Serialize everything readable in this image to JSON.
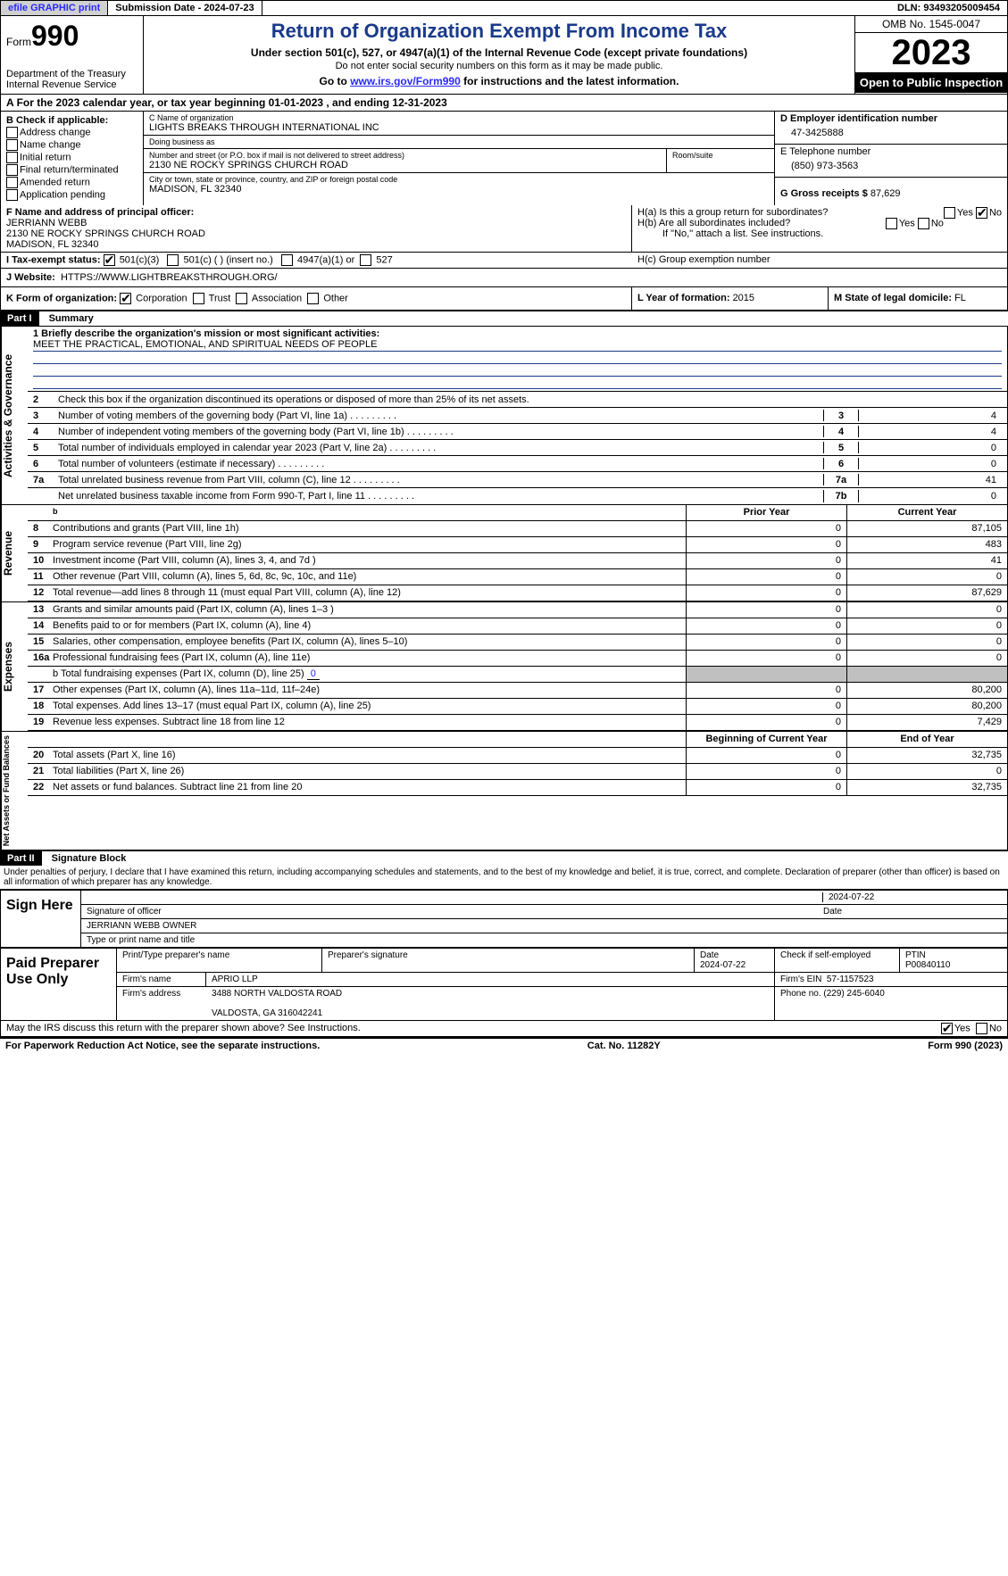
{
  "top": {
    "efile": "efile GRAPHIC print",
    "sub_date_label": "Submission Date - 2024-07-23",
    "dln": "DLN: 93493205009454"
  },
  "header": {
    "form_word": "Form",
    "form_no": "990",
    "dept": "Department of the Treasury Internal Revenue Service",
    "title": "Return of Organization Exempt From Income Tax",
    "sub1": "Under section 501(c), 527, or 4947(a)(1) of the Internal Revenue Code (except private foundations)",
    "sub2": "Do not enter social security numbers on this form as it may be made public.",
    "sub3_pre": "Go to ",
    "sub3_link": "www.irs.gov/Form990",
    "sub3_post": " for instructions and the latest information.",
    "omb": "OMB No. 1545-0047",
    "year": "2023",
    "open": "Open to Public Inspection"
  },
  "line_a": "For the 2023 calendar year, or tax year beginning 01-01-2023    , and ending 12-31-2023",
  "col_b": {
    "hdr": "B Check if applicable:",
    "opts": [
      "Address change",
      "Name change",
      "Initial return",
      "Final return/terminated",
      "Amended return",
      "Application pending"
    ]
  },
  "col_c": {
    "name_lbl": "C Name of organization",
    "name": "LIGHTS BREAKS THROUGH INTERNATIONAL INC",
    "dba_lbl": "Doing business as",
    "dba": "",
    "street_lbl": "Number and street (or P.O. box if mail is not delivered to street address)",
    "street": "2130 NE ROCKY SPRINGS CHURCH ROAD",
    "room_lbl": "Room/suite",
    "city_lbl": "City or town, state or province, country, and ZIP or foreign postal code",
    "city": "MADISON, FL   32340"
  },
  "col_d": {
    "ein_lbl": "D Employer identification number",
    "ein": "47-3425888",
    "tel_lbl": "E Telephone number",
    "tel": "(850) 973-3563",
    "gross_lbl": "G Gross receipts $ ",
    "gross": "87,629"
  },
  "row_f": {
    "lbl": "F  Name and address of principal officer:",
    "name": "JERRIANN WEBB",
    "street": "2130 NE ROCKY SPRINGS CHURCH ROAD",
    "city": "MADISON, FL   32340"
  },
  "row_h": {
    "ha_lbl": "H(a)  Is this a group return for subordinates?",
    "ha_yes": "Yes",
    "ha_no": "No",
    "hb_lbl": "H(b)  Are all subordinates included?",
    "hb_note": "If \"No,\" attach a list. See instructions.",
    "hc_lbl": "H(c)  Group exemption number"
  },
  "row_i": {
    "lbl": "I   Tax-exempt status:",
    "c3": "501(c)(3)",
    "c": "501(c) (  ) (insert no.)",
    "a1": "4947(a)(1) or",
    "527": "527"
  },
  "row_j": {
    "lbl": "J   Website:",
    "val": "HTTPS://WWW.LIGHTBREAKSTHROUGH.ORG/"
  },
  "row_k": {
    "lbl": "K Form of organization:",
    "corp": "Corporation",
    "trust": "Trust",
    "assoc": "Association",
    "other": "Other"
  },
  "row_l": {
    "lbl": "L Year of formation: ",
    "val": "2015"
  },
  "row_m": {
    "lbl": "M State of legal domicile: ",
    "val": "FL"
  },
  "part1": {
    "label": "Part I",
    "title": "Summary",
    "l1_lbl": "1  Briefly describe the organization's mission or most significant activities:",
    "l1_val": "MEET THE PRACTICAL, EMOTIONAL, AND SPIRITUAL NEEDS OF PEOPLE",
    "l2": "Check this box      if the organization discontinued its operations or disposed of more than 25% of its net assets.",
    "rows_gov": [
      {
        "n": "3",
        "t": "Number of voting members of the governing body (Part VI, line 1a)",
        "box": "3",
        "v": "4"
      },
      {
        "n": "4",
        "t": "Number of independent voting members of the governing body (Part VI, line 1b)",
        "box": "4",
        "v": "4"
      },
      {
        "n": "5",
        "t": "Total number of individuals employed in calendar year 2023 (Part V, line 2a)",
        "box": "5",
        "v": "0"
      },
      {
        "n": "6",
        "t": "Total number of volunteers (estimate if necessary)",
        "box": "6",
        "v": "0"
      },
      {
        "n": "7a",
        "t": "Total unrelated business revenue from Part VIII, column (C), line 12",
        "box": "7a",
        "v": "41"
      },
      {
        "n": "",
        "t": "Net unrelated business taxable income from Form 990-T, Part I, line 11",
        "box": "7b",
        "v": "0"
      }
    ],
    "prior_hdr": "Prior Year",
    "curr_hdr": "Current Year",
    "rows_rev": [
      {
        "n": "8",
        "t": "Contributions and grants (Part VIII, line 1h)",
        "p": "0",
        "c": "87,105"
      },
      {
        "n": "9",
        "t": "Program service revenue (Part VIII, line 2g)",
        "p": "0",
        "c": "483"
      },
      {
        "n": "10",
        "t": "Investment income (Part VIII, column (A), lines 3, 4, and 7d )",
        "p": "0",
        "c": "41"
      },
      {
        "n": "11",
        "t": "Other revenue (Part VIII, column (A), lines 5, 6d, 8c, 9c, 10c, and 11e)",
        "p": "0",
        "c": "0"
      },
      {
        "n": "12",
        "t": "Total revenue—add lines 8 through 11 (must equal Part VIII, column (A), line 12)",
        "p": "0",
        "c": "87,629"
      }
    ],
    "rows_exp": [
      {
        "n": "13",
        "t": "Grants and similar amounts paid (Part IX, column (A), lines 1–3 )",
        "p": "0",
        "c": "0"
      },
      {
        "n": "14",
        "t": "Benefits paid to or for members (Part IX, column (A), line 4)",
        "p": "0",
        "c": "0"
      },
      {
        "n": "15",
        "t": "Salaries, other compensation, employee benefits (Part IX, column (A), lines 5–10)",
        "p": "0",
        "c": "0"
      },
      {
        "n": "16a",
        "t": "Professional fundraising fees (Part IX, column (A), line 11e)",
        "p": "0",
        "c": "0"
      }
    ],
    "row_16b_lbl": "b   Total fundraising expenses (Part IX, column (D), line 25)",
    "row_16b_val": "0",
    "rows_exp2": [
      {
        "n": "17",
        "t": "Other expenses (Part IX, column (A), lines 11a–11d, 11f–24e)",
        "p": "0",
        "c": "80,200"
      },
      {
        "n": "18",
        "t": "Total expenses. Add lines 13–17 (must equal Part IX, column (A), line 25)",
        "p": "0",
        "c": "80,200"
      },
      {
        "n": "19",
        "t": "Revenue less expenses. Subtract line 18 from line 12",
        "p": "0",
        "c": "7,429"
      }
    ],
    "bcy_hdr": "Beginning of Current Year",
    "eoy_hdr": "End of Year",
    "rows_net": [
      {
        "n": "20",
        "t": "Total assets (Part X, line 16)",
        "p": "0",
        "c": "32,735"
      },
      {
        "n": "21",
        "t": "Total liabilities (Part X, line 26)",
        "p": "0",
        "c": "0"
      },
      {
        "n": "22",
        "t": "Net assets or fund balances. Subtract line 21 from line 20",
        "p": "0",
        "c": "32,735"
      }
    ],
    "side_gov": "Activities & Governance",
    "side_rev": "Revenue",
    "side_exp": "Expenses",
    "side_net": "Net Assets or Fund Balances"
  },
  "part2": {
    "label": "Part II",
    "title": "Signature Block",
    "penalties": "Under penalties of perjury, I declare that I have examined this return, including accompanying schedules and statements, and to the best of my knowledge and belief, it is true, correct, and complete. Declaration of preparer (other than officer) is based on all information of which preparer has any knowledge.",
    "sign_here": "Sign Here",
    "sig_date": "2024-07-22",
    "sig_lbl": "Signature of officer",
    "sig_date_lbl": "Date",
    "officer": "JERRIANN WEBB OWNER",
    "officer_lbl": "Type or print name and title",
    "paid": "Paid Preparer Use Only",
    "prep_name_lbl": "Print/Type preparer's name",
    "prep_sig_lbl": "Preparer's signature",
    "prep_date_lbl": "Date",
    "prep_date": "2024-07-22",
    "prep_check": "Check       if self-employed",
    "ptin_lbl": "PTIN",
    "ptin": "P00840110",
    "firm_name_lbl": "Firm's name",
    "firm_name": "APRIO LLP",
    "firm_ein_lbl": "Firm's EIN",
    "firm_ein": "57-1157523",
    "firm_addr_lbl": "Firm's address",
    "firm_addr1": "3488 NORTH VALDOSTA ROAD",
    "firm_addr2": "VALDOSTA, GA   316042241",
    "phone_lbl": "Phone no.",
    "phone": "(229) 245-6040",
    "discuss": "May the IRS discuss this return with the preparer shown above? See Instructions.",
    "yes": "Yes",
    "no": "No"
  },
  "footer": {
    "pra": "For Paperwork Reduction Act Notice, see the separate instructions.",
    "cat": "Cat. No. 11282Y",
    "form": "Form 990 (2023)"
  }
}
